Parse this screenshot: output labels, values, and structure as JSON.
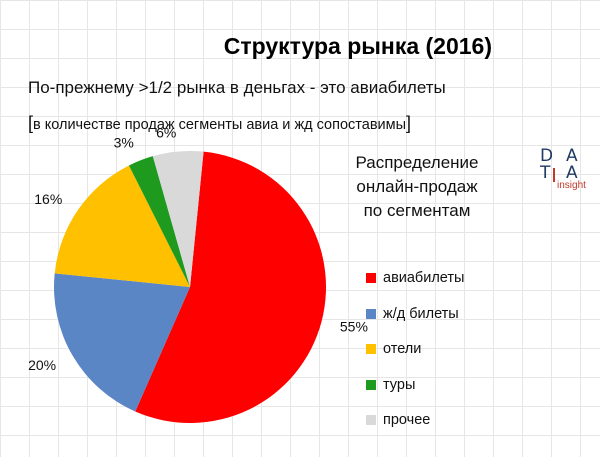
{
  "title": "Структура рынка (2016)",
  "subtitle": "По-прежнему >1/2 рынка в деньгах - это авиабилеты",
  "note": "в количестве продаж сегменты авиа и жд сопоставимы",
  "legend_title": [
    "Распределение",
    "онлайн-продаж",
    "по сегментам"
  ],
  "logo": {
    "letters": [
      "D",
      "A",
      "T",
      "A"
    ],
    "sub": "insight"
  },
  "chart_data": {
    "type": "pie",
    "title": "Распределение онлайн-продаж по сегментам",
    "legend_position": "right",
    "series": [
      {
        "name": "авиабилеты",
        "value": 55,
        "label": "55%",
        "color": "#ff0000"
      },
      {
        "name": "ж/д билеты",
        "value": 20,
        "label": "20%",
        "color": "#5b86c5"
      },
      {
        "name": "отели",
        "value": 16,
        "label": "16%",
        "color": "#ffc000"
      },
      {
        "name": "туры",
        "value": 3,
        "label": "3%",
        "color": "#1e9a1e"
      },
      {
        "name": "прочее",
        "value": 6,
        "label": "6%",
        "color": "#d9d9d9"
      }
    ]
  }
}
